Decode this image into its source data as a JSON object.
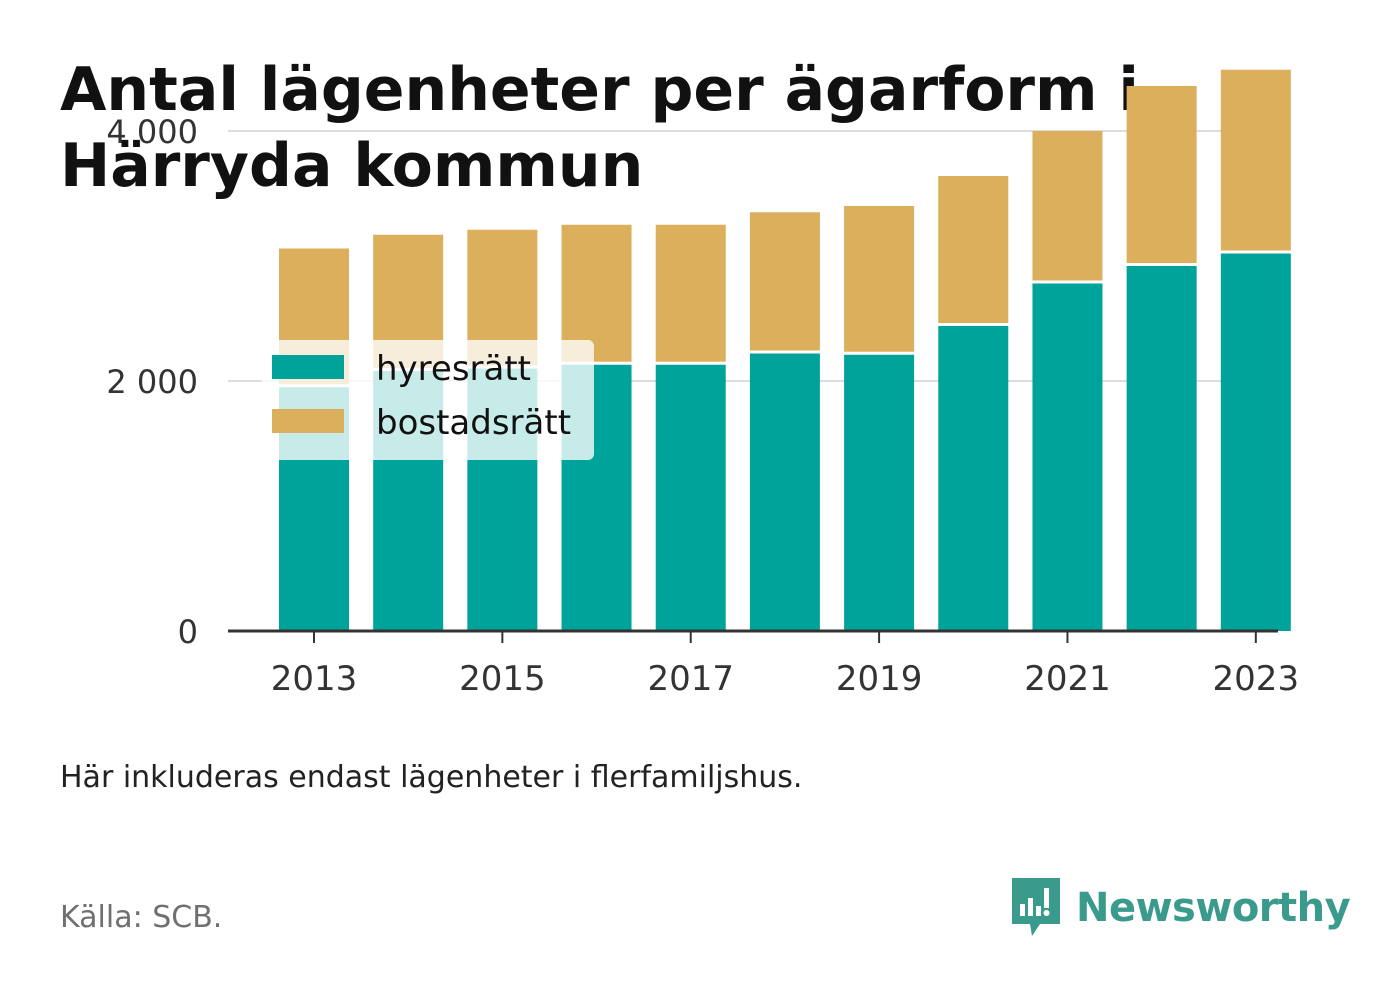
{
  "header": {
    "title": "Antal lägenheter per ägarform i Härryda kommun"
  },
  "chart_data": {
    "type": "bar",
    "stacked": true,
    "categories": [
      "2013",
      "2014",
      "2015",
      "2016",
      "2017",
      "2018",
      "2019",
      "2020",
      "2021",
      "2022",
      "2023"
    ],
    "x_tick_labels": [
      "2013",
      "2015",
      "2017",
      "2019",
      "2021",
      "2023"
    ],
    "series": [
      {
        "name": "hyresrätt",
        "color": "#00a39a",
        "values": [
          1950,
          2080,
          2100,
          2130,
          2130,
          2220,
          2210,
          2440,
          2780,
          2920,
          3020
        ]
      },
      {
        "name": "bostadsrätt",
        "color": "#dbaf5c",
        "values": [
          1110,
          1090,
          1110,
          1120,
          1120,
          1130,
          1190,
          1200,
          1220,
          1440,
          1470
        ]
      }
    ],
    "y_ticks": [
      0,
      2000,
      4000
    ],
    "y_tick_labels": [
      "0",
      "2 000",
      "4 000"
    ],
    "ylim": [
      0,
      4000
    ],
    "grid": true,
    "legend_position": "top-left"
  },
  "footer": {
    "note": "Här inkluderas endast lägenheter i flerfamiljshus.",
    "source": "Källa: SCB.",
    "brand": "Newsworthy"
  },
  "icons": {
    "brand_logo": "bar-chart-speech-bubble-icon"
  }
}
